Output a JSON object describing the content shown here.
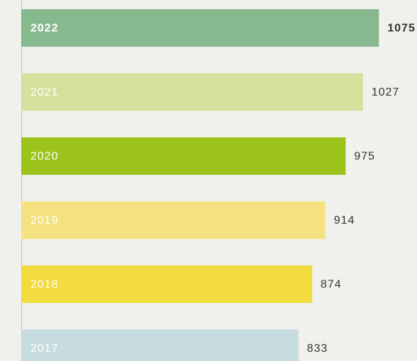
{
  "chart_data": {
    "type": "bar",
    "orientation": "horizontal",
    "categories": [
      "2022",
      "2021",
      "2020",
      "2019",
      "2018",
      "2017"
    ],
    "values": [
      1075,
      1027,
      975,
      914,
      874,
      833
    ],
    "colors": [
      "#87b98f",
      "#d3e19d",
      "#9cc31c",
      "#f3e27f",
      "#f1db3e",
      "#c6dcdf"
    ]
  }
}
